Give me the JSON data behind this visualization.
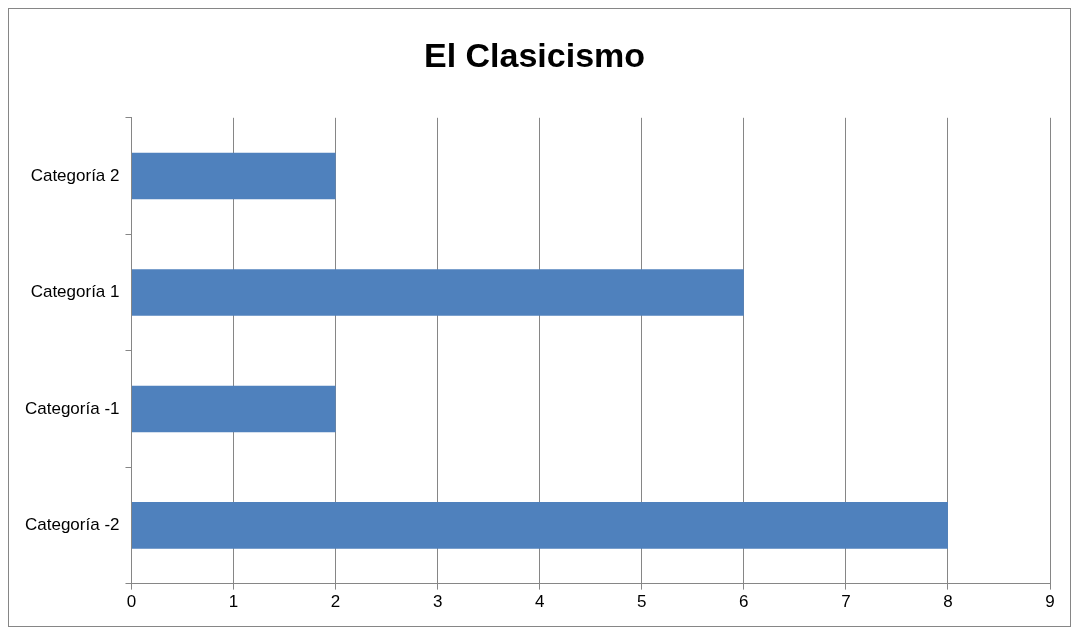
{
  "chart_data": {
    "type": "bar",
    "title": "El Clasicismo",
    "orientation": "horizontal",
    "categories": [
      "Categoría 2",
      "Categoría 1",
      "Categoría -1",
      "Categoría -2"
    ],
    "values": [
      2,
      6,
      2,
      8
    ],
    "color": "#4f81bd",
    "xlim": [
      0,
      9
    ],
    "xticks": [
      0,
      1,
      2,
      3,
      4,
      5,
      6,
      7,
      8,
      9
    ],
    "grid": "x",
    "legend": false
  }
}
